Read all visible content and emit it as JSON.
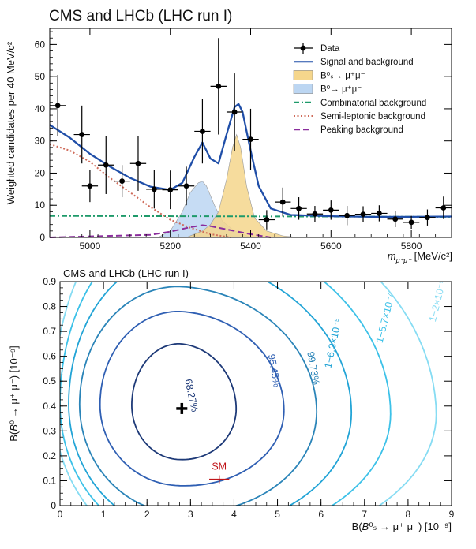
{
  "chart_data": [
    {
      "type": "line",
      "title": "CMS and LHCb (LHC run I)",
      "ylabel": "Weighted candidates per 40 MeV/c²",
      "xlabel": "m_{μ⁺μ⁻} [MeV/c²]",
      "xlabel_main": "m",
      "xlabel_sub": "μ⁺μ⁻",
      "xlabel_unit": " [MeV/c²]",
      "xlim": [
        4900,
        5900
      ],
      "ylim": [
        0,
        65
      ],
      "xticks": [
        5000,
        5200,
        5400,
        5600,
        5800
      ],
      "yticks": [
        0,
        10,
        20,
        30,
        40,
        50,
        60
      ],
      "legend": {
        "position": "top-right",
        "entries": [
          {
            "label": "Data",
            "kind": "data",
            "color": "#000000"
          },
          {
            "label": "Signal and background",
            "kind": "line",
            "color": "#1f4ea8"
          },
          {
            "label": "B⁰ₛ→ μ⁺μ⁻",
            "kind": "fill",
            "color": "#f5d68c"
          },
          {
            "label": "B⁰→ μ⁺μ⁻",
            "kind": "fill",
            "color": "#bcd6f2"
          },
          {
            "label": "Combinatorial background",
            "kind": "dashdot",
            "color": "#1e9a6a"
          },
          {
            "label": "Semi-leptonic background",
            "kind": "dotted",
            "color": "#cf6b5a"
          },
          {
            "label": "Peaking background",
            "kind": "dashed",
            "color": "#8a2d9c"
          }
        ]
      },
      "data_points": [
        {
          "x": 4920,
          "y": 41,
          "err": 9.5
        },
        {
          "x": 4980,
          "y": 32,
          "err": 9
        },
        {
          "x": 5000,
          "y": 16,
          "err": 5
        },
        {
          "x": 5040,
          "y": 22.5,
          "err": 9
        },
        {
          "x": 5080,
          "y": 17.5,
          "err": 5
        },
        {
          "x": 5120,
          "y": 23,
          "err": 8.5
        },
        {
          "x": 5160,
          "y": 15,
          "err": 6
        },
        {
          "x": 5200,
          "y": 14.8,
          "err": 6
        },
        {
          "x": 5240,
          "y": 16,
          "err": 6
        },
        {
          "x": 5280,
          "y": 33,
          "err": 10
        },
        {
          "x": 5320,
          "y": 47,
          "err": 15
        },
        {
          "x": 5360,
          "y": 39,
          "err": 12
        },
        {
          "x": 5400,
          "y": 30.5,
          "err": 9.5
        },
        {
          "x": 5440,
          "y": 5.5,
          "err": 3
        },
        {
          "x": 5480,
          "y": 11,
          "err": 4.5
        },
        {
          "x": 5520,
          "y": 9,
          "err": 3.5
        },
        {
          "x": 5560,
          "y": 7.3,
          "err": 2.5
        },
        {
          "x": 5600,
          "y": 8.5,
          "err": 3
        },
        {
          "x": 5640,
          "y": 6.8,
          "err": 3
        },
        {
          "x": 5680,
          "y": 7.2,
          "err": 2.5
        },
        {
          "x": 5720,
          "y": 7.5,
          "err": 2.5
        },
        {
          "x": 5760,
          "y": 5.7,
          "err": 2.5
        },
        {
          "x": 5800,
          "y": 4.7,
          "err": 2
        },
        {
          "x": 5840,
          "y": 6.2,
          "err": 2.5
        },
        {
          "x": 5880,
          "y": 9.2,
          "err": 3.5
        }
      ],
      "series": [
        {
          "name": "Signal and background",
          "x": [
            4900,
            4950,
            5000,
            5050,
            5100,
            5150,
            5200,
            5230,
            5260,
            5280,
            5300,
            5320,
            5340,
            5360,
            5370,
            5380,
            5400,
            5420,
            5450,
            5500,
            5600,
            5700,
            5800,
            5900
          ],
          "y": [
            35,
            31,
            26,
            22,
            18.5,
            15.8,
            14.8,
            17,
            25,
            29.5,
            24.5,
            23,
            32,
            40.5,
            41.5,
            39,
            27,
            16,
            9,
            7,
            6.6,
            6.4,
            6.4,
            6.5
          ]
        },
        {
          "name": "B⁰ₛ→ μ⁺μ⁻",
          "x": [
            5240,
            5280,
            5300,
            5320,
            5340,
            5355,
            5365,
            5375,
            5390,
            5410,
            5440,
            5480,
            5520
          ],
          "y": [
            0,
            2,
            4,
            8,
            18,
            28,
            32,
            28,
            16,
            6,
            2,
            0.5,
            0
          ]
        },
        {
          "name": "B⁰→ μ⁺μ⁻",
          "x": [
            5170,
            5200,
            5230,
            5250,
            5270,
            5280,
            5290,
            5310,
            5330,
            5360,
            5400
          ],
          "y": [
            0,
            2,
            8,
            14,
            17,
            17.5,
            16,
            10,
            5,
            2,
            0
          ]
        },
        {
          "name": "Combinatorial background",
          "x": [
            4900,
            5900
          ],
          "y": [
            6.7,
            6.4
          ]
        },
        {
          "name": "Semi-leptonic background",
          "x": [
            4900,
            4950,
            5000,
            5050,
            5100,
            5150,
            5200,
            5250,
            5300,
            5350
          ],
          "y": [
            29,
            27,
            23.5,
            18.5,
            14,
            9.5,
            5.5,
            3,
            1,
            0
          ]
        },
        {
          "name": "Peaking background",
          "x": [
            4900,
            5150,
            5200,
            5250,
            5280,
            5300,
            5340,
            5400,
            5450
          ],
          "y": [
            0,
            0.8,
            1.8,
            3.2,
            3.8,
            3.5,
            2.5,
            1,
            0
          ]
        }
      ]
    },
    {
      "type": "contour",
      "title": "CMS and LHCb (LHC run I)",
      "xlabel": "B(B⁰ₛ → μ⁺ μ⁻) [10⁻⁹]",
      "xlabel_parts": [
        "B(",
        "B",
        "⁰ₛ",
        " → μ⁺ μ⁻) [10⁻⁹]"
      ],
      "ylabel": "B(B⁰ → μ⁺ μ⁻) [10⁻⁹]",
      "ylabel_parts": [
        "B(",
        "B",
        "⁰",
        " → μ⁺ μ⁻) [10⁻⁹]"
      ],
      "xlim": [
        0,
        9
      ],
      "ylim": [
        0,
        0.9
      ],
      "xticks": [
        0,
        1,
        2,
        3,
        4,
        5,
        6,
        7,
        8,
        9
      ],
      "yticks": [
        0,
        0.1,
        0.2,
        0.3,
        0.4,
        0.5,
        0.6,
        0.7,
        0.8,
        0.9
      ],
      "best_fit": {
        "x": 2.8,
        "y": 0.39
      },
      "sm_point": {
        "label": "SM",
        "x": 3.66,
        "y": 0.106,
        "xerr": 0.23,
        "color": "#c0151a"
      },
      "contours": [
        {
          "label": "68.27%",
          "color": "#1e3a78",
          "cx": 2.75,
          "cy": 0.4,
          "rx_left": 1.1,
          "rx_right": 1.3,
          "ry_up": 0.25,
          "ry_down": 0.215
        },
        {
          "label": "95.45%",
          "color": "#2f5fb3",
          "cx": 2.75,
          "cy": 0.4,
          "rx_left": 1.83,
          "rx_right": 2.4,
          "ry_up": 0.38,
          "ry_down": 0.32
        },
        {
          "label": "99.73%",
          "color": "#2a84b8",
          "cx": 2.75,
          "cy": 0.4,
          "rx_left": 2.3,
          "rx_right": 3.15,
          "ry_up": 0.48,
          "ry_down": 0.43
        },
        {
          "label": "1−6.3×10⁻⁵",
          "color": "#22a4d6",
          "cx": 2.75,
          "cy": 0.4,
          "rx_left": 2.55,
          "rx_right": 3.95,
          "ry_up": 0.6,
          "ry_down": 0.5
        },
        {
          "label": "1−5.7×10⁻⁷",
          "color": "#3cc1e8",
          "cx": 2.75,
          "cy": 0.4,
          "rx_left": 2.75,
          "rx_right": 4.85,
          "ry_up": 0.72,
          "ry_down": 0.55
        },
        {
          "label": "1−2×10⁻⁹",
          "color": "#86dcf3",
          "cx": 2.75,
          "cy": 0.4,
          "rx_left": 2.9,
          "rx_right": 5.9,
          "ry_up": 0.86,
          "ry_down": 0.6
        }
      ]
    }
  ]
}
